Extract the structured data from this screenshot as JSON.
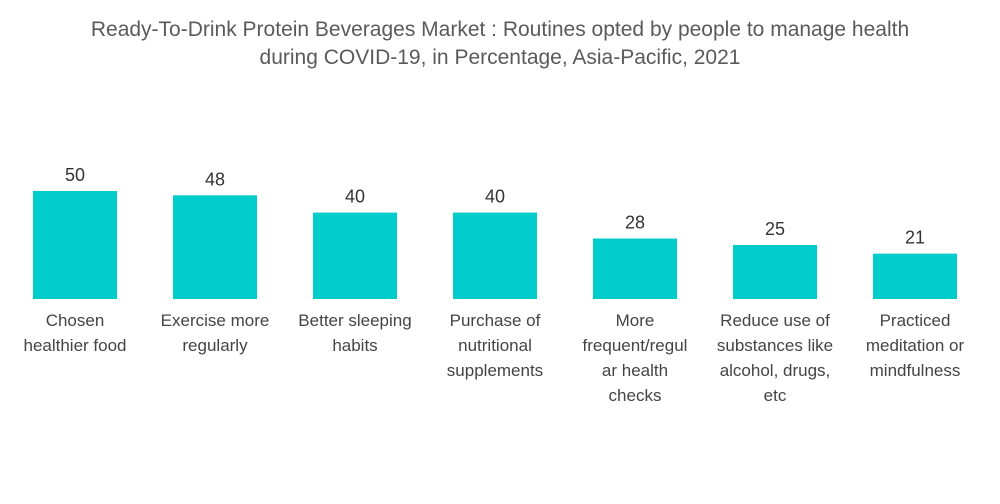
{
  "chart_data": {
    "type": "bar",
    "title": "Ready-To-Drink Protein Beverages Market : Routines opted by people to manage health\nduring COVID-19, in Percentage, Asia-Pacific, 2021",
    "categories": [
      [
        "Chosen",
        "healthier food"
      ],
      [
        "Exercise more",
        "regularly"
      ],
      [
        "Better sleeping",
        "habits"
      ],
      [
        "Purchase of",
        "nutritional",
        "supplements"
      ],
      [
        "More",
        "frequent/regul",
        "ar health",
        "checks"
      ],
      [
        "Reduce use of",
        "substances like",
        "alcohol, drugs,",
        "etc"
      ],
      [
        "Practiced",
        "meditation or",
        "mindfulness"
      ]
    ],
    "values": [
      50,
      48,
      40,
      40,
      28,
      25,
      21
    ],
    "bar_color": "#00cccc",
    "xlabel": "",
    "ylabel": "",
    "ylim": [
      0,
      50
    ],
    "grid": false,
    "legend": "none"
  }
}
